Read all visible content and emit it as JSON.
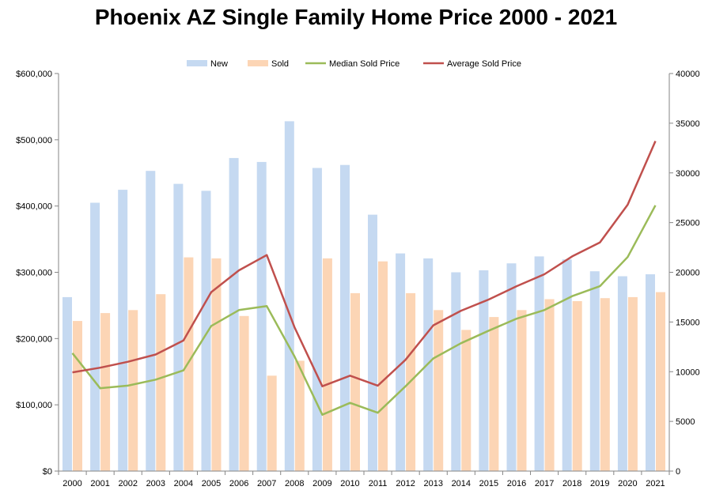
{
  "chart_data": {
    "type": "bar",
    "title": "Phoenix AZ Single Family Home Price 2000 - 2021",
    "categories": [
      "2000",
      "2001",
      "2002",
      "2003",
      "2004",
      "2005",
      "2006",
      "2007",
      "2008",
      "2009",
      "2010",
      "2011",
      "2012",
      "2013",
      "2014",
      "2015",
      "2016",
      "2017",
      "2018",
      "2019",
      "2020",
      "2021"
    ],
    "y_left": {
      "range": [
        0,
        600000
      ],
      "ticks": [
        "$0",
        "$100,000",
        "$200,000",
        "$300,000",
        "$400,000",
        "$500,000",
        "$600,000"
      ],
      "tick_values": [
        0,
        100000,
        200000,
        300000,
        400000,
        500000,
        600000
      ]
    },
    "y_right": {
      "range": [
        0,
        40000
      ],
      "ticks": [
        "0",
        "5000",
        "10000",
        "15000",
        "20000",
        "25000",
        "30000",
        "35000",
        "40000"
      ],
      "tick_values": [
        0,
        5000,
        10000,
        15000,
        20000,
        25000,
        30000,
        35000,
        40000
      ]
    },
    "legend_position": "top",
    "series": [
      {
        "name": "New",
        "type": "bar",
        "axis": "right",
        "color": "#c5d9f1",
        "values": [
          17500,
          27000,
          28300,
          30200,
          28900,
          28200,
          31500,
          31100,
          35200,
          30500,
          30800,
          25800,
          21900,
          21400,
          20000,
          20200,
          20900,
          21600,
          21300,
          20100,
          19600,
          19800
        ]
      },
      {
        "name": "Sold",
        "type": "bar",
        "axis": "right",
        "color": "#fcd5b5",
        "values": [
          15100,
          15900,
          16200,
          17800,
          21500,
          21400,
          15600,
          9600,
          11100,
          21400,
          17900,
          21100,
          17900,
          16200,
          14200,
          15500,
          16200,
          17300,
          17100,
          17400,
          17500,
          18000
        ]
      },
      {
        "name": "Median Sold Price",
        "type": "line",
        "axis": "left",
        "color": "#9bbb59",
        "values": [
          178000,
          125000,
          129000,
          138000,
          152000,
          219000,
          243000,
          249000,
          173000,
          85000,
          103000,
          88000,
          128000,
          170000,
          193000,
          212000,
          230000,
          243000,
          264000,
          279000,
          323000,
          401000
        ]
      },
      {
        "name": "Average Sold Price",
        "type": "line",
        "axis": "left",
        "color": "#c0504d",
        "values": [
          149000,
          156000,
          165000,
          176000,
          197000,
          270000,
          303000,
          326000,
          217000,
          128000,
          144000,
          129000,
          168000,
          220000,
          242000,
          259000,
          279000,
          297000,
          324000,
          345000,
          402000,
          498000
        ]
      }
    ]
  }
}
